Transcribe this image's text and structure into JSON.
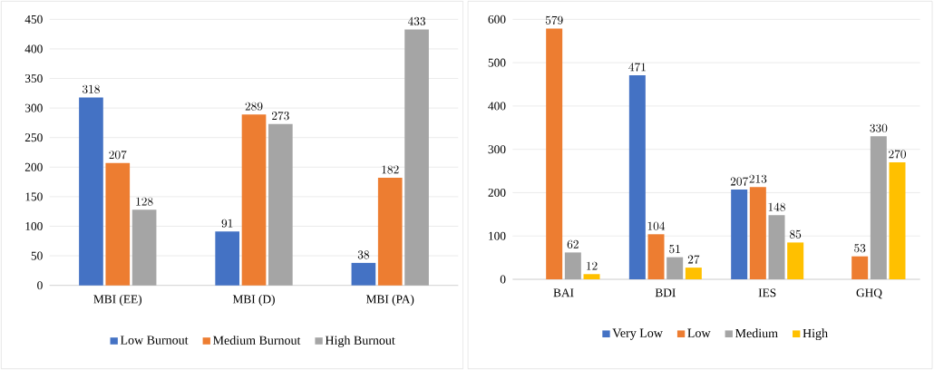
{
  "chart_data": [
    {
      "type": "bar",
      "categories": [
        "MBI (EE)",
        "MBI (D)",
        "MBI (PA)"
      ],
      "series": [
        {
          "name": "Low Burnout",
          "color": "#4472c4",
          "values": [
            318,
            91,
            38
          ]
        },
        {
          "name": "Medium Burnout",
          "color": "#ed7d31",
          "values": [
            207,
            289,
            182
          ]
        },
        {
          "name": "High Burnout",
          "color": "#a5a5a5",
          "values": [
            128,
            273,
            433
          ]
        }
      ],
      "ylim": [
        0,
        450
      ],
      "yticks": [
        0,
        50,
        100,
        150,
        200,
        250,
        300,
        350,
        400,
        450
      ],
      "grid": "y",
      "legend": "bottom",
      "data_labels": true
    },
    {
      "type": "bar",
      "categories": [
        "BAI",
        "BDI",
        "IES",
        "GHQ"
      ],
      "series": [
        {
          "name": "Very Low",
          "color": "#4472c4",
          "values": [
            null,
            471,
            207,
            null
          ]
        },
        {
          "name": "Low",
          "color": "#ed7d31",
          "values": [
            579,
            104,
            213,
            53
          ]
        },
        {
          "name": "Medium",
          "color": "#a5a5a5",
          "values": [
            62,
            51,
            148,
            330
          ]
        },
        {
          "name": "High",
          "color": "#ffc000",
          "values": [
            12,
            27,
            85,
            270
          ]
        }
      ],
      "ylim": [
        0,
        600
      ],
      "yticks": [
        0,
        100,
        200,
        300,
        400,
        500,
        600
      ],
      "grid": "y",
      "legend": "bottom",
      "data_labels": true
    }
  ]
}
